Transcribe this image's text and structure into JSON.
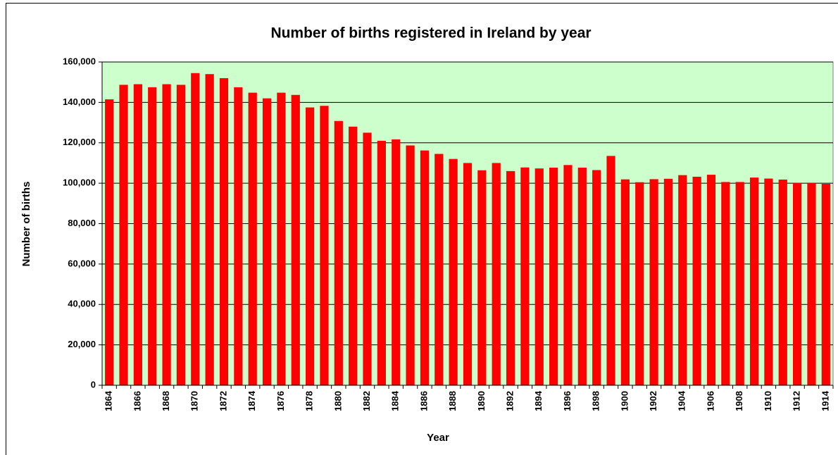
{
  "chart_data": {
    "type": "bar",
    "title": "Number of births registered in Ireland by year",
    "x_label": "Year",
    "y_label": "Number of births",
    "categories": [
      "1864",
      null,
      "1866",
      null,
      "1868",
      null,
      "1870",
      null,
      "1872",
      null,
      "1874",
      null,
      "1876",
      null,
      "1878",
      null,
      "1880",
      null,
      "1882",
      null,
      "1884",
      null,
      "1886",
      null,
      "1888",
      null,
      "1890",
      null,
      "1892",
      null,
      "1894",
      null,
      "1896",
      null,
      "1898",
      null,
      "1900",
      null,
      "1902",
      null,
      "1904",
      null,
      "1906",
      null,
      "1908",
      null,
      "1910",
      null,
      "1912",
      null,
      "1914"
    ],
    "values": [
      141500,
      148700,
      149000,
      147500,
      149000,
      148700,
      154500,
      154000,
      152000,
      147500,
      144800,
      142000,
      144800,
      143700,
      137500,
      138300,
      130800,
      128000,
      125000,
      121000,
      121700,
      118700,
      116200,
      114500,
      112000,
      110000,
      106400,
      110000,
      106000,
      107800,
      107300,
      107700,
      109000,
      107700,
      106500,
      113500,
      101900,
      100500,
      102000,
      102200,
      104000,
      103200,
      104200,
      100600,
      100600,
      102800,
      102300,
      101800,
      100000,
      100000,
      99700
    ],
    "color": "#ff0000",
    "plot_background": "#ccffcc",
    "ylim": [
      0,
      160000
    ],
    "yticks": [
      0,
      {
        "value": 20000,
        "label": "20,000"
      },
      {
        "value": 40000,
        "label": "40,000"
      },
      {
        "value": 60000,
        "label": "60,000"
      },
      {
        "value": 80000,
        "label": "80,000"
      },
      {
        "value": 100000,
        "label": "100,000"
      },
      {
        "value": 120000,
        "label": "120,000"
      },
      {
        "value": 140000,
        "label": "140,000"
      },
      {
        "value": 160000,
        "label": "160,000"
      }
    ],
    "grid": true
  }
}
